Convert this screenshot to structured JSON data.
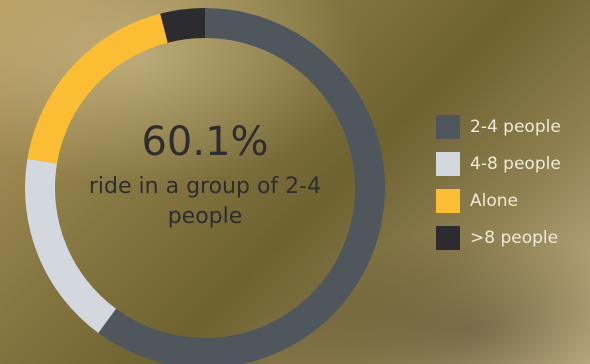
{
  "chart_data": {
    "type": "pie",
    "variant": "donut",
    "categories": [
      "2-4 people",
      "4-8 people",
      "Alone",
      ">8 people"
    ],
    "values": [
      60.1,
      17.5,
      18.4,
      4.0
    ],
    "colors": [
      "#4f575d",
      "#d3d7de",
      "#fbbd33",
      "#2c2c2e"
    ],
    "legend_position": "right"
  },
  "center": {
    "value_text": "60.1%",
    "caption": "ride in a group of 2-4 people"
  },
  "legend": [
    {
      "label": "2-4 people",
      "color": "#4f575d"
    },
    {
      "label": "4-8 people",
      "color": "#d3d7de"
    },
    {
      "label": "Alone",
      "color": "#fbbd33"
    },
    {
      "label": ">8 people",
      "color": "#2c2c2e"
    }
  ]
}
